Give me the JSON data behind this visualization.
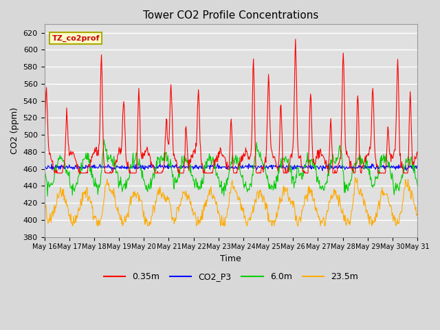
{
  "title": "Tower CO2 Profile Concentrations",
  "xlabel": "Time",
  "ylabel": "CO2 (ppm)",
  "ylim": [
    380,
    630
  ],
  "yticks": [
    380,
    400,
    420,
    440,
    460,
    480,
    500,
    520,
    540,
    560,
    580,
    600,
    620
  ],
  "xstart_day": 16,
  "n_days": 15,
  "pts_per_day": 48,
  "colors": {
    "0.35m": "#ff0000",
    "CO2_P3": "#0000ff",
    "6.0m": "#00cc00",
    "23.5m": "#ffaa00"
  },
  "annotation_text": "TZ_co2prof",
  "fig_bg": "#d8d8d8",
  "plot_bg": "#e0e0e0",
  "grid_color": "#ffffff",
  "legend_ncol": 4,
  "figsize": [
    6.4,
    4.8
  ],
  "dpi": 100
}
